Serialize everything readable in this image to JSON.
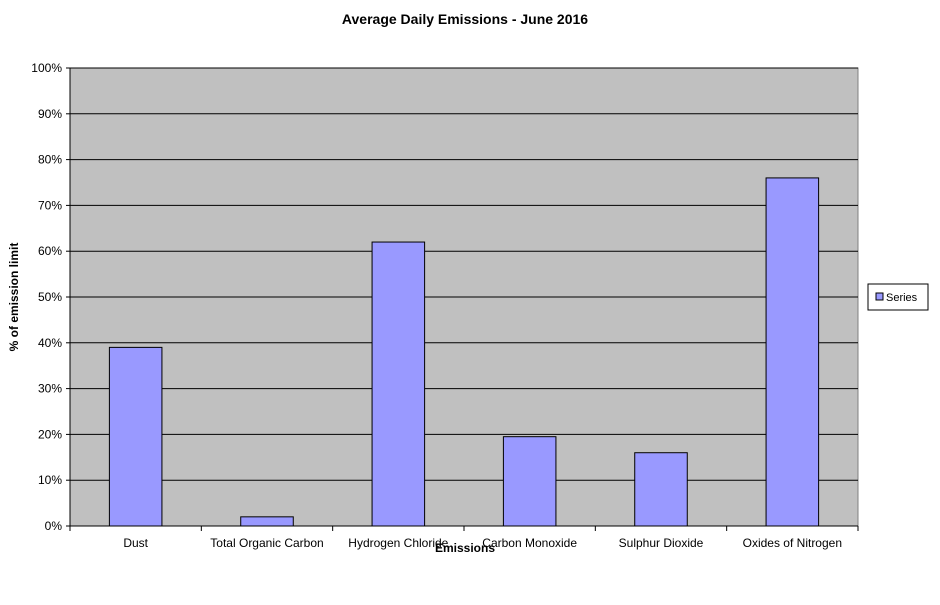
{
  "chart_data": {
    "type": "bar",
    "title": "Average Daily Emissions - June 2016",
    "xlabel": "Emissions",
    "ylabel": "% of emission limit",
    "categories": [
      "Dust",
      "Total Organic Carbon",
      "Hydrogen Chloride",
      "Carbon Monoxide",
      "Sulphur Dioxide",
      "Oxides of Nitrogen"
    ],
    "series": [
      {
        "name": "Series",
        "values": [
          39,
          2,
          62,
          19.5,
          16,
          76
        ]
      }
    ],
    "ylim": [
      0,
      100
    ],
    "yticks": [
      "0%",
      "10%",
      "20%",
      "30%",
      "40%",
      "50%",
      "60%",
      "70%",
      "80%",
      "90%",
      "100%"
    ],
    "grid": true,
    "legend": "right",
    "colors": {
      "bar": "#9999ff",
      "plot_background": "#c0c0c0",
      "grid": "#000000"
    }
  }
}
